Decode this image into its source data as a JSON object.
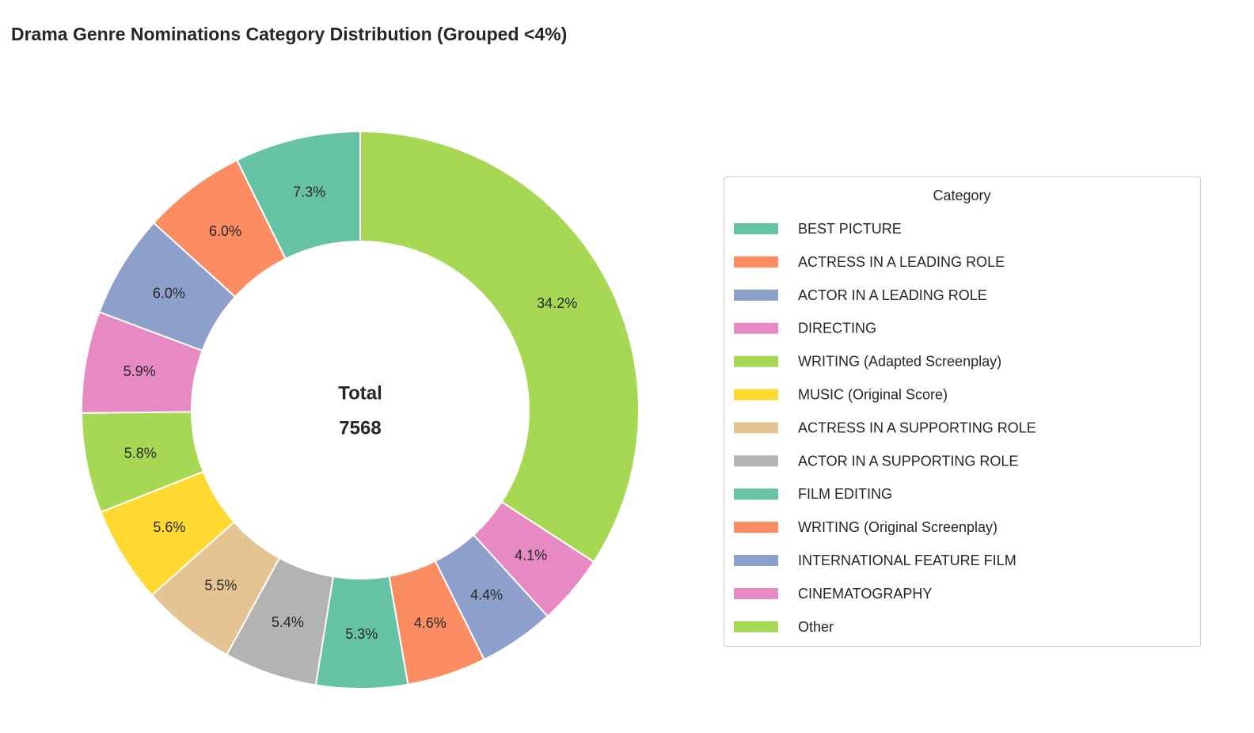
{
  "chart_data": {
    "type": "pie",
    "subtype": "donut",
    "title": "Drama Genre Nominations Category Distribution (Grouped <4%)",
    "center_label": [
      "Total",
      "7568"
    ],
    "legend_title": "Category",
    "legend_position": "right",
    "start_angle_deg": 90,
    "direction": "counterclockwise",
    "slices": [
      {
        "label": "BEST PICTURE",
        "value": 7.3,
        "display": "7.3%",
        "color": "#66c2a5"
      },
      {
        "label": "ACTRESS IN A LEADING ROLE",
        "value": 6.0,
        "display": "6.0%",
        "color": "#fc8d62"
      },
      {
        "label": "ACTOR IN A LEADING ROLE",
        "value": 6.0,
        "display": "6.0%",
        "color": "#8da0cb"
      },
      {
        "label": "DIRECTING",
        "value": 5.9,
        "display": "5.9%",
        "color": "#e78ac3"
      },
      {
        "label": "WRITING (Adapted Screenplay)",
        "value": 5.8,
        "display": "5.8%",
        "color": "#a6d854"
      },
      {
        "label": "MUSIC (Original Score)",
        "value": 5.6,
        "display": "5.6%",
        "color": "#ffd92f"
      },
      {
        "label": "ACTRESS IN A SUPPORTING ROLE",
        "value": 5.5,
        "display": "5.5%",
        "color": "#e5c494"
      },
      {
        "label": "ACTOR IN A SUPPORTING ROLE",
        "value": 5.4,
        "display": "5.4%",
        "color": "#b3b3b3"
      },
      {
        "label": "FILM EDITING",
        "value": 5.3,
        "display": "5.3%",
        "color": "#66c2a5"
      },
      {
        "label": "WRITING (Original Screenplay)",
        "value": 4.6,
        "display": "4.6%",
        "color": "#fc8d62"
      },
      {
        "label": "INTERNATIONAL FEATURE FILM",
        "value": 4.4,
        "display": "4.4%",
        "color": "#8da0cb"
      },
      {
        "label": "CINEMATOGRAPHY",
        "value": 4.1,
        "display": "4.1%",
        "color": "#e78ac3"
      },
      {
        "label": "Other",
        "value": 34.2,
        "display": "34.2%",
        "color": "#a6d854"
      }
    ]
  }
}
